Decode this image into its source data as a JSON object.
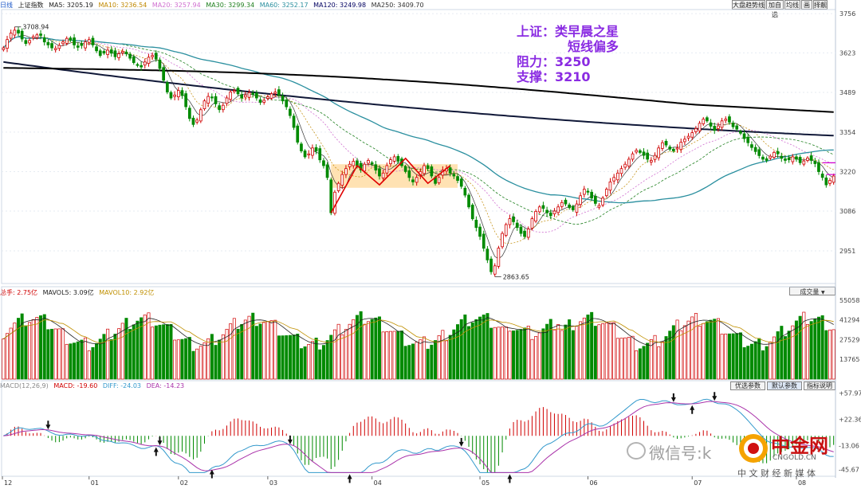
{
  "window": {
    "period": "日线",
    "index_name": "上证指数"
  },
  "toolbar": {
    "buttons": [
      "大盘趋势线",
      "加自选",
      "均线",
      "画",
      "择靓"
    ]
  },
  "ma_legend": [
    {
      "label": "MA5: 3205.19",
      "color": "#222222"
    },
    {
      "label": "MA10: 3236.54",
      "color": "#e8a000"
    },
    {
      "label": "MA20: 3257.94",
      "color": "#d070d0"
    },
    {
      "label": "MA30: 3299.34",
      "color": "#208020"
    },
    {
      "label": "MA60: 3252.17",
      "color": "#2a8f9f"
    },
    {
      "label": "MA120: 3249.98",
      "color": "#000060"
    },
    {
      "label": "MA250: 3409.70",
      "color": "#333333"
    }
  ],
  "vol_legend": [
    {
      "label": "总手: 2.75亿",
      "color": "#d00000"
    },
    {
      "label": "MAVOL5: 3.09亿",
      "color": "#222222"
    },
    {
      "label": "MAVOL10: 2.92亿",
      "color": "#d0a000"
    }
  ],
  "vol_dropdown": "成交量",
  "macd_legend": [
    {
      "label": "MACD(12,26,9)",
      "color": "#888888"
    },
    {
      "label": "MACD: -19.60",
      "color": "#d00000"
    },
    {
      "label": "DIFF: -24.03",
      "color": "#3399cc"
    },
    {
      "label": "DEA: -14.23",
      "color": "#aa33aa"
    }
  ],
  "macd_buttons": [
    "优选参数",
    "默认参数",
    "指标说明"
  ],
  "annotation": {
    "line1": "上证：类早晨之星",
    "line2": "短线偏多",
    "line3": "阻力：3250",
    "line4": "支撑：3210"
  },
  "watermark": {
    "wechat": "微信号:k",
    "logo_name": "中金网",
    "logo_url": "CNGOLD.CN",
    "logo_sub": "中 文 财 经 新 媒 体"
  },
  "chart_data": {
    "type": "candlestick",
    "price_axis_ticks": [
      3756,
      3623,
      3489,
      3354,
      3220,
      3086,
      2951
    ],
    "price_range": [
      2840,
      3770
    ],
    "volume_axis_ticks": [
      55058,
      41294,
      27529,
      13765
    ],
    "macd_axis_ticks": [
      "+57.97",
      "+22.36",
      "-13.06",
      "-45.67"
    ],
    "x_ticks": [
      "12",
      "01",
      "02",
      "03",
      "04",
      "05",
      "06",
      "07",
      "08"
    ],
    "labels": {
      "high": "3708.94",
      "low": "2863.65"
    },
    "closes": [
      3640,
      3668,
      3690,
      3700,
      3690,
      3670,
      3655,
      3665,
      3678,
      3684,
      3682,
      3660,
      3650,
      3640,
      3638,
      3648,
      3660,
      3672,
      3666,
      3650,
      3642,
      3648,
      3660,
      3668,
      3650,
      3630,
      3614,
      3622,
      3632,
      3622,
      3610,
      3620,
      3628,
      3620,
      3605,
      3590,
      3580,
      3575,
      3592,
      3608,
      3614,
      3602,
      3570,
      3530,
      3490,
      3470,
      3480,
      3495,
      3478,
      3440,
      3400,
      3380,
      3395,
      3430,
      3460,
      3475,
      3470,
      3450,
      3430,
      3445,
      3470,
      3490,
      3495,
      3484,
      3470,
      3480,
      3488,
      3482,
      3470,
      3455,
      3462,
      3474,
      3484,
      3490,
      3480,
      3460,
      3440,
      3410,
      3370,
      3320,
      3290,
      3270,
      3280,
      3300,
      3290,
      3260,
      3240,
      3200,
      3080,
      3150,
      3180,
      3210,
      3230,
      3245,
      3255,
      3240,
      3225,
      3245,
      3258,
      3245,
      3225,
      3205,
      3215,
      3240,
      3260,
      3270,
      3255,
      3240,
      3220,
      3200,
      3185,
      3200,
      3220,
      3240,
      3230,
      3205,
      3180,
      3200,
      3225,
      3230,
      3215,
      3205,
      3190,
      3170,
      3140,
      3100,
      3060,
      3030,
      3000,
      2960,
      2920,
      2880,
      2900,
      2960,
      3010,
      3040,
      3060,
      3050,
      3030,
      3010,
      3000,
      3025,
      3060,
      3085,
      3100,
      3095,
      3080,
      3070,
      3086,
      3100,
      3115,
      3110,
      3098,
      3090,
      3110,
      3138,
      3160,
      3150,
      3130,
      3112,
      3105,
      3130,
      3160,
      3185,
      3200,
      3215,
      3230,
      3245,
      3262,
      3280,
      3292,
      3285,
      3275,
      3262,
      3258,
      3275,
      3300,
      3318,
      3310,
      3296,
      3290,
      3300,
      3320,
      3330,
      3340,
      3352,
      3366,
      3384,
      3398,
      3392,
      3374,
      3360,
      3375,
      3392,
      3398,
      3388,
      3372,
      3364,
      3350,
      3332,
      3318,
      3302,
      3288,
      3274,
      3262,
      3258,
      3272,
      3285,
      3280,
      3265,
      3258,
      3260,
      3270,
      3262,
      3250,
      3256,
      3266,
      3258,
      3247,
      3220,
      3200,
      3175,
      3190,
      3205
    ]
  }
}
